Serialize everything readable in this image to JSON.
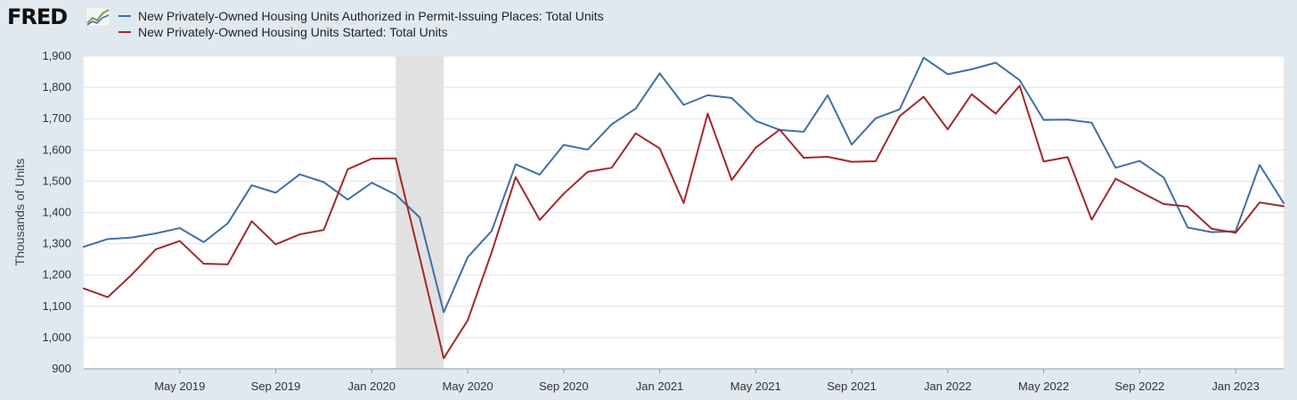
{
  "brand": {
    "logo_text": "FRED",
    "logo_icon": "fred-chart-icon"
  },
  "colors": {
    "permits": "#3f6fa8",
    "starts": "#a3282a",
    "recession": "#e1e1e1",
    "grid": "#dde3ea",
    "background": "#e1e9f0"
  },
  "chart_data": {
    "type": "line",
    "ylabel": "Thousands of Units",
    "ylim": [
      900,
      1900
    ],
    "yticks": [
      900,
      1000,
      1100,
      1200,
      1300,
      1400,
      1500,
      1600,
      1700,
      1800,
      1900
    ],
    "ytick_labels": [
      "900",
      "1,000",
      "1,100",
      "1,200",
      "1,300",
      "1,400",
      "1,500",
      "1,600",
      "1,700",
      "1,800",
      "1,900"
    ],
    "xlim": [
      "2019-01",
      "2023-03"
    ],
    "xticks": [
      {
        "label": "May 2019",
        "date": "2019-05"
      },
      {
        "label": "Sep 2019",
        "date": "2019-09"
      },
      {
        "label": "Jan 2020",
        "date": "2020-01"
      },
      {
        "label": "May 2020",
        "date": "2020-05"
      },
      {
        "label": "Sep 2020",
        "date": "2020-09"
      },
      {
        "label": "Jan 2021",
        "date": "2021-01"
      },
      {
        "label": "May 2021",
        "date": "2021-05"
      },
      {
        "label": "Sep 2021",
        "date": "2021-09"
      },
      {
        "label": "Jan 2022",
        "date": "2022-01"
      },
      {
        "label": "May 2022",
        "date": "2022-05"
      },
      {
        "label": "Sep 2022",
        "date": "2022-09"
      },
      {
        "label": "Jan 2023",
        "date": "2023-01"
      }
    ],
    "recession": {
      "start": "2020-02",
      "end": "2020-04"
    },
    "grid": true,
    "legend_position": "top-left",
    "x": [
      "2019-01",
      "2019-02",
      "2019-03",
      "2019-04",
      "2019-05",
      "2019-06",
      "2019-07",
      "2019-08",
      "2019-09",
      "2019-10",
      "2019-11",
      "2019-12",
      "2020-01",
      "2020-02",
      "2020-03",
      "2020-04",
      "2020-05",
      "2020-06",
      "2020-07",
      "2020-08",
      "2020-09",
      "2020-10",
      "2020-11",
      "2020-12",
      "2021-01",
      "2021-02",
      "2021-03",
      "2021-04",
      "2021-05",
      "2021-06",
      "2021-07",
      "2021-08",
      "2021-09",
      "2021-10",
      "2021-11",
      "2021-12",
      "2022-01",
      "2022-02",
      "2022-03",
      "2022-04",
      "2022-05",
      "2022-06",
      "2022-07",
      "2022-08",
      "2022-09",
      "2022-10",
      "2022-11",
      "2022-12",
      "2023-01",
      "2023-02",
      "2023-03"
    ],
    "series": [
      {
        "name": "New Privately-Owned Housing Units Authorized in Permit-Issuing Places: Total Units",
        "color": "#3f6fa8",
        "values": [
          1290,
          1315,
          1320,
          1333,
          1350,
          1305,
          1365,
          1487,
          1463,
          1522,
          1497,
          1441,
          1495,
          1457,
          1384,
          1081,
          1257,
          1341,
          1554,
          1521,
          1616,
          1601,
          1682,
          1732,
          1845,
          1744,
          1775,
          1766,
          1693,
          1664,
          1658,
          1775,
          1617,
          1701,
          1730,
          1895,
          1842,
          1858,
          1879,
          1823,
          1696,
          1697,
          1687,
          1543,
          1565,
          1512,
          1352,
          1337,
          1340,
          1552,
          1430
        ]
      },
      {
        "name": "New Privately-Owned Housing Units Started: Total Units",
        "color": "#a3282a",
        "values": [
          1157,
          1129,
          1201,
          1282,
          1309,
          1236,
          1234,
          1372,
          1298,
          1330,
          1344,
          1538,
          1572,
          1573,
          1256,
          934,
          1055,
          1273,
          1513,
          1376,
          1460,
          1530,
          1543,
          1653,
          1605,
          1430,
          1716,
          1504,
          1607,
          1665,
          1575,
          1578,
          1562,
          1564,
          1708,
          1770,
          1666,
          1778,
          1716,
          1805,
          1563,
          1577,
          1377,
          1508,
          1467,
          1427,
          1419,
          1348,
          1335,
          1432,
          1420
        ]
      }
    ]
  }
}
